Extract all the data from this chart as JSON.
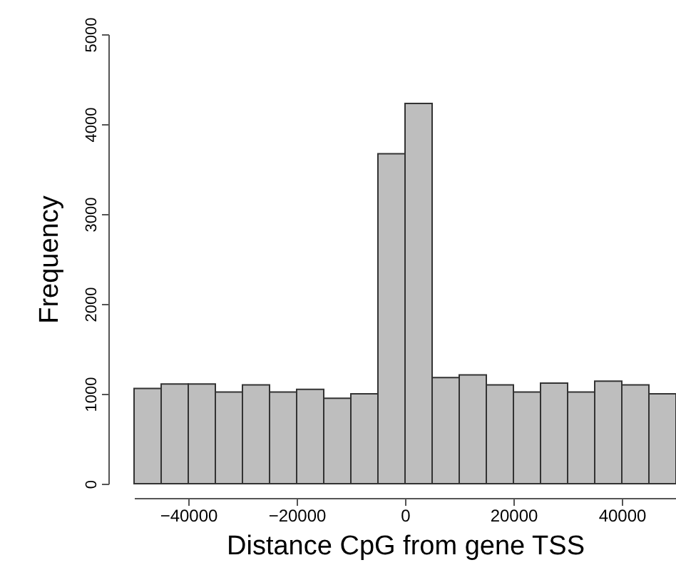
{
  "chart_data": {
    "type": "histogram",
    "xlabel": "Distance CpG from gene TSS",
    "ylabel": "Frequency",
    "bins": [
      -50000,
      -45000,
      -40000,
      -35000,
      -30000,
      -25000,
      -20000,
      -15000,
      -10000,
      -5000,
      0,
      5000,
      10000,
      15000,
      20000,
      25000,
      30000,
      35000,
      40000,
      45000,
      50000
    ],
    "values": [
      1060,
      1110,
      1110,
      1020,
      1100,
      1020,
      1050,
      950,
      1000,
      3670,
      4230,
      1180,
      1210,
      1100,
      1020,
      1120,
      1020,
      1140,
      1100,
      1000
    ],
    "color": "#bebebe",
    "xlim": [
      -50000,
      50000
    ],
    "xticks": [
      -40000,
      -20000,
      0,
      20000,
      40000
    ],
    "ylim": [
      0,
      5000
    ],
    "yticks": [
      0,
      1000,
      2000,
      3000,
      4000,
      5000
    ],
    "grid": false
  }
}
